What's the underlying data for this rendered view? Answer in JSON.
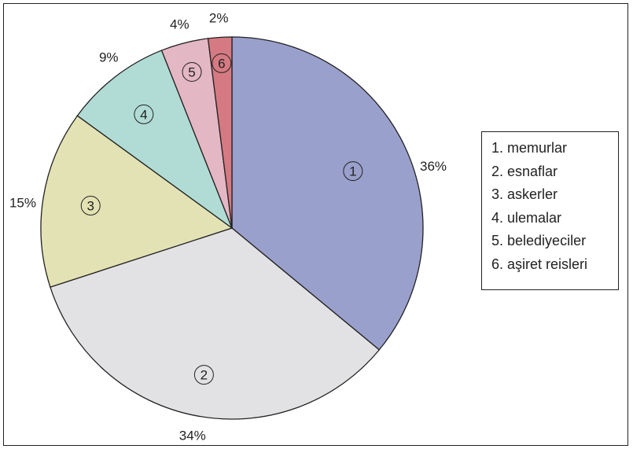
{
  "chart_data": {
    "type": "pie",
    "start_angle_deg": 0,
    "direction": "clockwise",
    "slices": [
      {
        "number": "1",
        "percent_label": "36%",
        "value": 36,
        "color": "#9aa0cc"
      },
      {
        "number": "2",
        "percent_label": "34%",
        "value": 34,
        "color": "#e2e2e4"
      },
      {
        "number": "3",
        "percent_label": "15%",
        "value": 15,
        "color": "#e2e2b4"
      },
      {
        "number": "4",
        "percent_label": "9%",
        "value": 9,
        "color": "#b1dcd5"
      },
      {
        "number": "5",
        "percent_label": "4%",
        "value": 4,
        "color": "#e4b7c5"
      },
      {
        "number": "6",
        "percent_label": "2%",
        "value": 2,
        "color": "#d57a82"
      }
    ],
    "legend": [
      "1. memurlar",
      "2. esnaflar",
      "3. askerler",
      "4. ulemalar",
      "5. belediyeciler",
      "6. aşiret reisleri"
    ]
  }
}
